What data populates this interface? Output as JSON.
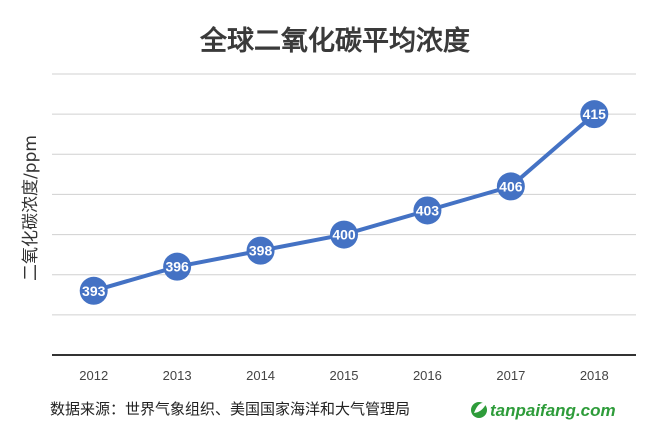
{
  "chart_data": {
    "type": "line",
    "title": "全球二氧化碳平均浓度",
    "ylabel": "二氧化碳浓度/ppm",
    "xlabel": "",
    "categories": [
      "2012",
      "2013",
      "2014",
      "2015",
      "2016",
      "2017",
      "2018"
    ],
    "series": [
      {
        "values": [
          393,
          396,
          398,
          400,
          403,
          406,
          415
        ]
      }
    ],
    "data_labels": [
      "393",
      "396",
      "398",
      "400",
      "403",
      "406",
      "415"
    ],
    "ylim": [
      385,
      420
    ],
    "grid": true,
    "legend": "none",
    "line_color": "#4472c4",
    "grid_color": "#d0d0d0",
    "axis_color": "#333333"
  },
  "source_text": "数据来源：世界气象组织、美国国家海洋和大气管理局",
  "watermark": {
    "text": "tanpaifang.com",
    "icon": "leaf-logo-icon",
    "color": "#2e9c3a"
  }
}
